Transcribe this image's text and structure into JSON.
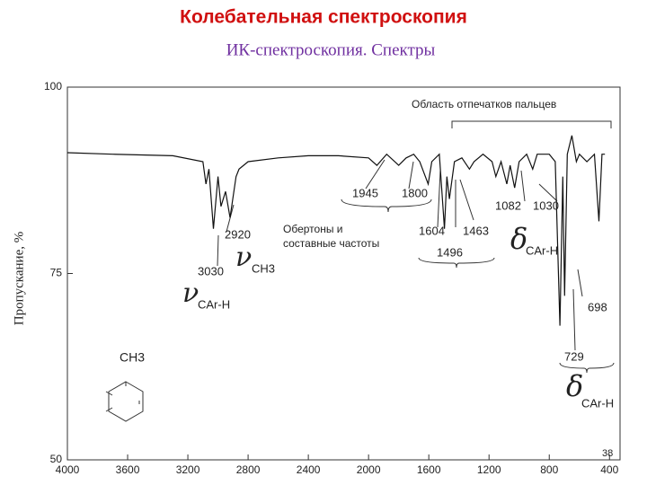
{
  "chart_data": {
    "type": "line",
    "title": "Колебательная спектроскопия",
    "subtitle": "ИК-спектроскопия. Спектры",
    "ylabel": "Пропускание, %",
    "x": [
      4000,
      3700,
      3300,
      3100,
      3080,
      3060,
      3030,
      3000,
      2980,
      2950,
      2920,
      2880,
      2860,
      2800,
      2600,
      2400,
      2200,
      2000,
      1945,
      1880,
      1800,
      1750,
      1700,
      1660,
      1604,
      1580,
      1530,
      1496,
      1480,
      1463,
      1430,
      1380,
      1330,
      1300,
      1240,
      1180,
      1155,
      1120,
      1082,
      1060,
      1030,
      1000,
      950,
      910,
      880,
      840,
      800,
      760,
      729,
      710,
      698,
      680,
      650,
      620,
      600,
      550,
      500,
      470,
      450,
      430
    ],
    "series": [
      {
        "name": "spectrum",
        "color": "#111111",
        "values": [
          91.2,
          91,
          90.8,
          90,
          87,
          89,
          81,
          88,
          84,
          86,
          82.5,
          88,
          89,
          90,
          90.5,
          90.8,
          90.8,
          90.5,
          89.5,
          91,
          89.5,
          90.5,
          91,
          90,
          87,
          90,
          91,
          81,
          88,
          85,
          90,
          90.5,
          89,
          90,
          91,
          90,
          88,
          90,
          87,
          89.5,
          86.5,
          90,
          91,
          89,
          91,
          91,
          91,
          90,
          68,
          88,
          72,
          91,
          93.5,
          90,
          91,
          90,
          91,
          82,
          91,
          91
        ]
      }
    ],
    "xlim": [
      4000,
      330
    ],
    "ylim": [
      50,
      100
    ],
    "xticks": [
      4000,
      3600,
      3200,
      2800,
      2400,
      2000,
      1600,
      1200,
      800,
      400
    ],
    "yticks": [
      50,
      75,
      100
    ],
    "annotations": [
      "Область отпечатков пальцев",
      "1945",
      "1800",
      "Обертоны и",
      "составные частоты",
      "1604",
      "1463",
      "1496",
      "1082",
      "1030",
      "2920",
      "3030",
      "ν",
      "CH3",
      "ν",
      "CAr-H",
      "δ",
      "CAr-H",
      "698",
      "729",
      "δ",
      "CAr-H",
      "CH3",
      "38"
    ]
  }
}
